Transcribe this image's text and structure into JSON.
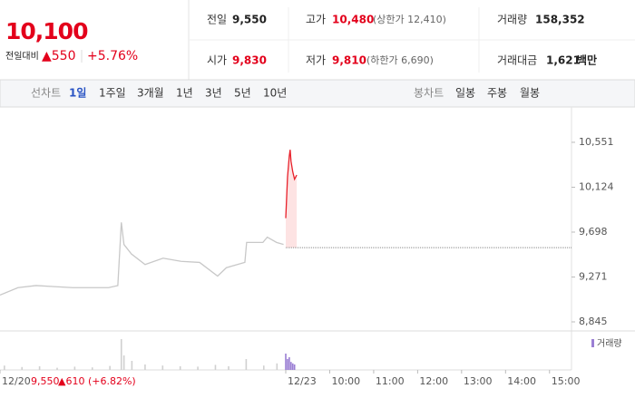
{
  "header": {
    "price": "10,100",
    "change_label": "전일대비",
    "change": "▲550",
    "change_pct": "+5.76%",
    "stats": [
      {
        "label": "전일",
        "value": "9,550"
      },
      {
        "label": "시가",
        "value": "9,830"
      },
      {
        "label": "고가",
        "value": "10,480",
        "note": "(상한가 12,410)"
      },
      {
        "label": "저가",
        "value": "9,810",
        "note": "(하한가 6,690)"
      },
      {
        "label": "거래량",
        "value": "158,352"
      },
      {
        "label": "거래대금",
        "value": "1,621",
        "unit": "백만"
      }
    ]
  },
  "tabs": {
    "line_label": "선차트",
    "line": [
      "1일",
      "1주일",
      "3개월",
      "1년",
      "3년",
      "5년",
      "10년"
    ],
    "candle_label": "봉차트",
    "candle": [
      "일봉",
      "주봉",
      "월봉"
    ]
  },
  "footer": {
    "price": "9,550",
    "change": "▲610 (+6.82%)"
  },
  "chart_data": [
    {
      "type": "line",
      "xlim": [
        -6.5,
        6.5
      ],
      "ylim": [
        8759,
        10809
      ],
      "baseline": 9550,
      "yticks": [
        {
          "value": 10551,
          "label": "10,551"
        },
        {
          "value": 10124,
          "label": "10,124"
        },
        {
          "value": 9698,
          "label": "9,698"
        },
        {
          "value": 9271,
          "label": "9,271"
        },
        {
          "value": 8845,
          "label": "8,845"
        }
      ],
      "xticks": [
        {
          "value": -6.5,
          "label": "12/20"
        },
        {
          "value": 0,
          "label": "12/23"
        },
        {
          "value": 1,
          "label": "10:00"
        },
        {
          "value": 2,
          "label": "11:00"
        },
        {
          "value": 3,
          "label": "12:00"
        },
        {
          "value": 4,
          "label": "13:00"
        },
        {
          "value": 5,
          "label": "14:00"
        },
        {
          "value": 6,
          "label": "15:00"
        }
      ],
      "series": [
        {
          "color": "#c8c8c8",
          "x": [
            -6.5,
            -6.09,
            -5.68,
            -5.26,
            -4.85,
            -4.44,
            -4.03,
            -3.82,
            -3.74,
            -3.68,
            -3.51,
            -3.2,
            -2.79,
            -2.38,
            -1.96,
            -1.55,
            -1.35,
            -0.93,
            -0.89,
            -0.52,
            -0.42,
            -0.21,
            -0.05
          ],
          "values": [
            9100,
            9170,
            9190,
            9180,
            9170,
            9170,
            9170,
            9190,
            9790,
            9580,
            9490,
            9390,
            9450,
            9420,
            9410,
            9280,
            9360,
            9410,
            9600,
            9600,
            9650,
            9600,
            9580
          ]
        },
        {
          "color": "#e8202a",
          "fill": "#fde3e3",
          "x": [
            0,
            0.04,
            0.08,
            0.1,
            0.12,
            0.16,
            0.2,
            0.25
          ],
          "values": [
            9830,
            10220,
            10420,
            10480,
            10370,
            10270,
            10200,
            10240
          ]
        }
      ]
    },
    {
      "type": "bar",
      "xlim": [
        -6.5,
        6.5
      ],
      "ylim": [
        0,
        100
      ],
      "series": [
        {
          "color": "#d0d0d0",
          "x": [
            -6.4,
            -6.0,
            -5.6,
            -5.2,
            -4.8,
            -4.4,
            -4.0,
            -3.74,
            -3.68,
            -3.5,
            -3.2,
            -2.8,
            -2.4,
            -2.0,
            -1.6,
            -1.3,
            -0.9,
            -0.5,
            -0.2
          ],
          "values": [
            12,
            8,
            10,
            6,
            9,
            7,
            11,
            85,
            40,
            25,
            15,
            12,
            10,
            9,
            14,
            10,
            30,
            12,
            18
          ]
        },
        {
          "name": "거래량",
          "color": "#9b7fd4",
          "x": [
            0,
            0.04,
            0.08,
            0.12,
            0.16,
            0.2
          ],
          "values": [
            45,
            30,
            35,
            22,
            18,
            15
          ]
        }
      ]
    }
  ]
}
